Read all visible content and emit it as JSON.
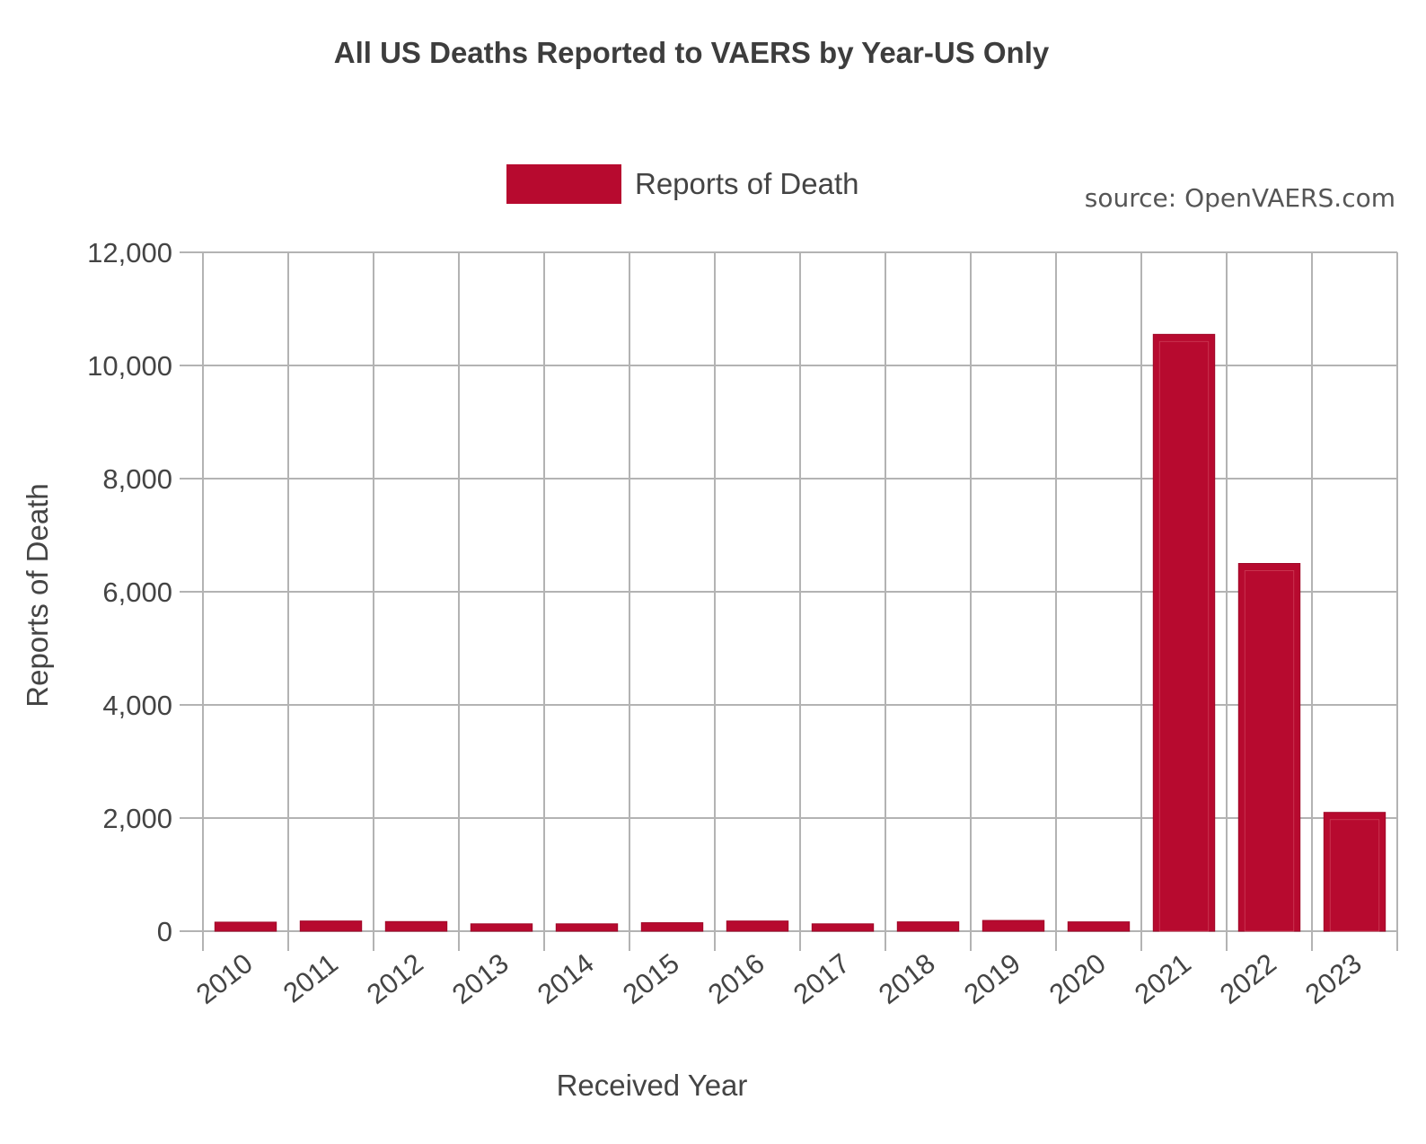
{
  "chart_data": {
    "type": "bar",
    "title": "All US Deaths Reported to VAERS by Year-US Only",
    "source": "source: OpenVAERS.com",
    "xlabel": "Received Year",
    "ylabel": "Reports of Death",
    "legend": {
      "position": "top-center",
      "entries": [
        "Reports of Death"
      ]
    },
    "categories": [
      "2010",
      "2011",
      "2012",
      "2013",
      "2014",
      "2015",
      "2016",
      "2017",
      "2018",
      "2019",
      "2020",
      "2021",
      "2022",
      "2023"
    ],
    "series": [
      {
        "name": "Reports of Death",
        "color": "#b70a2f",
        "values": [
          160,
          180,
          170,
          130,
          130,
          150,
          180,
          130,
          165,
          190,
          165,
          10550,
          6500,
          2100
        ]
      }
    ],
    "ylim": [
      0,
      12000
    ],
    "yticks": [
      0,
      2000,
      4000,
      6000,
      8000,
      10000,
      12000
    ],
    "ytick_labels": [
      "0",
      "2,000",
      "4,000",
      "6,000",
      "8,000",
      "10,000",
      "12,000"
    ],
    "grid": true,
    "colors": {
      "bar": "#b70a2f",
      "grid": "#b3b3b3",
      "text": "#444444"
    }
  }
}
